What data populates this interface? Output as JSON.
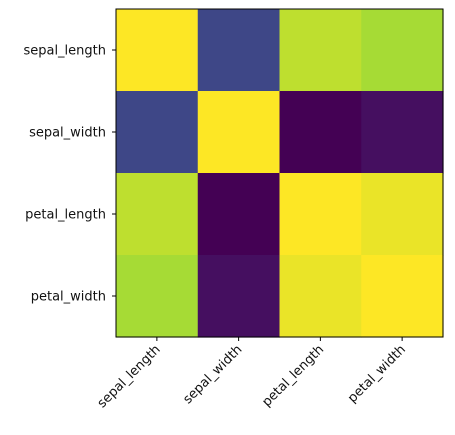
{
  "chart_data": {
    "type": "heatmap",
    "x_categories": [
      "sepal_length",
      "sepal_width",
      "petal_length",
      "petal_width"
    ],
    "y_categories": [
      "sepal_length",
      "sepal_width",
      "petal_length",
      "petal_width"
    ],
    "values": [
      [
        1.0,
        -0.11,
        0.87,
        0.82
      ],
      [
        -0.11,
        1.0,
        -0.42,
        -0.36
      ],
      [
        0.87,
        -0.42,
        1.0,
        0.96
      ],
      [
        0.82,
        -0.36,
        0.96,
        1.0
      ]
    ],
    "colormap": "viridis",
    "color_range": [
      -0.42,
      1.0
    ],
    "title": "",
    "xlabel": "",
    "ylabel": "",
    "grid": false,
    "legend": "none"
  }
}
